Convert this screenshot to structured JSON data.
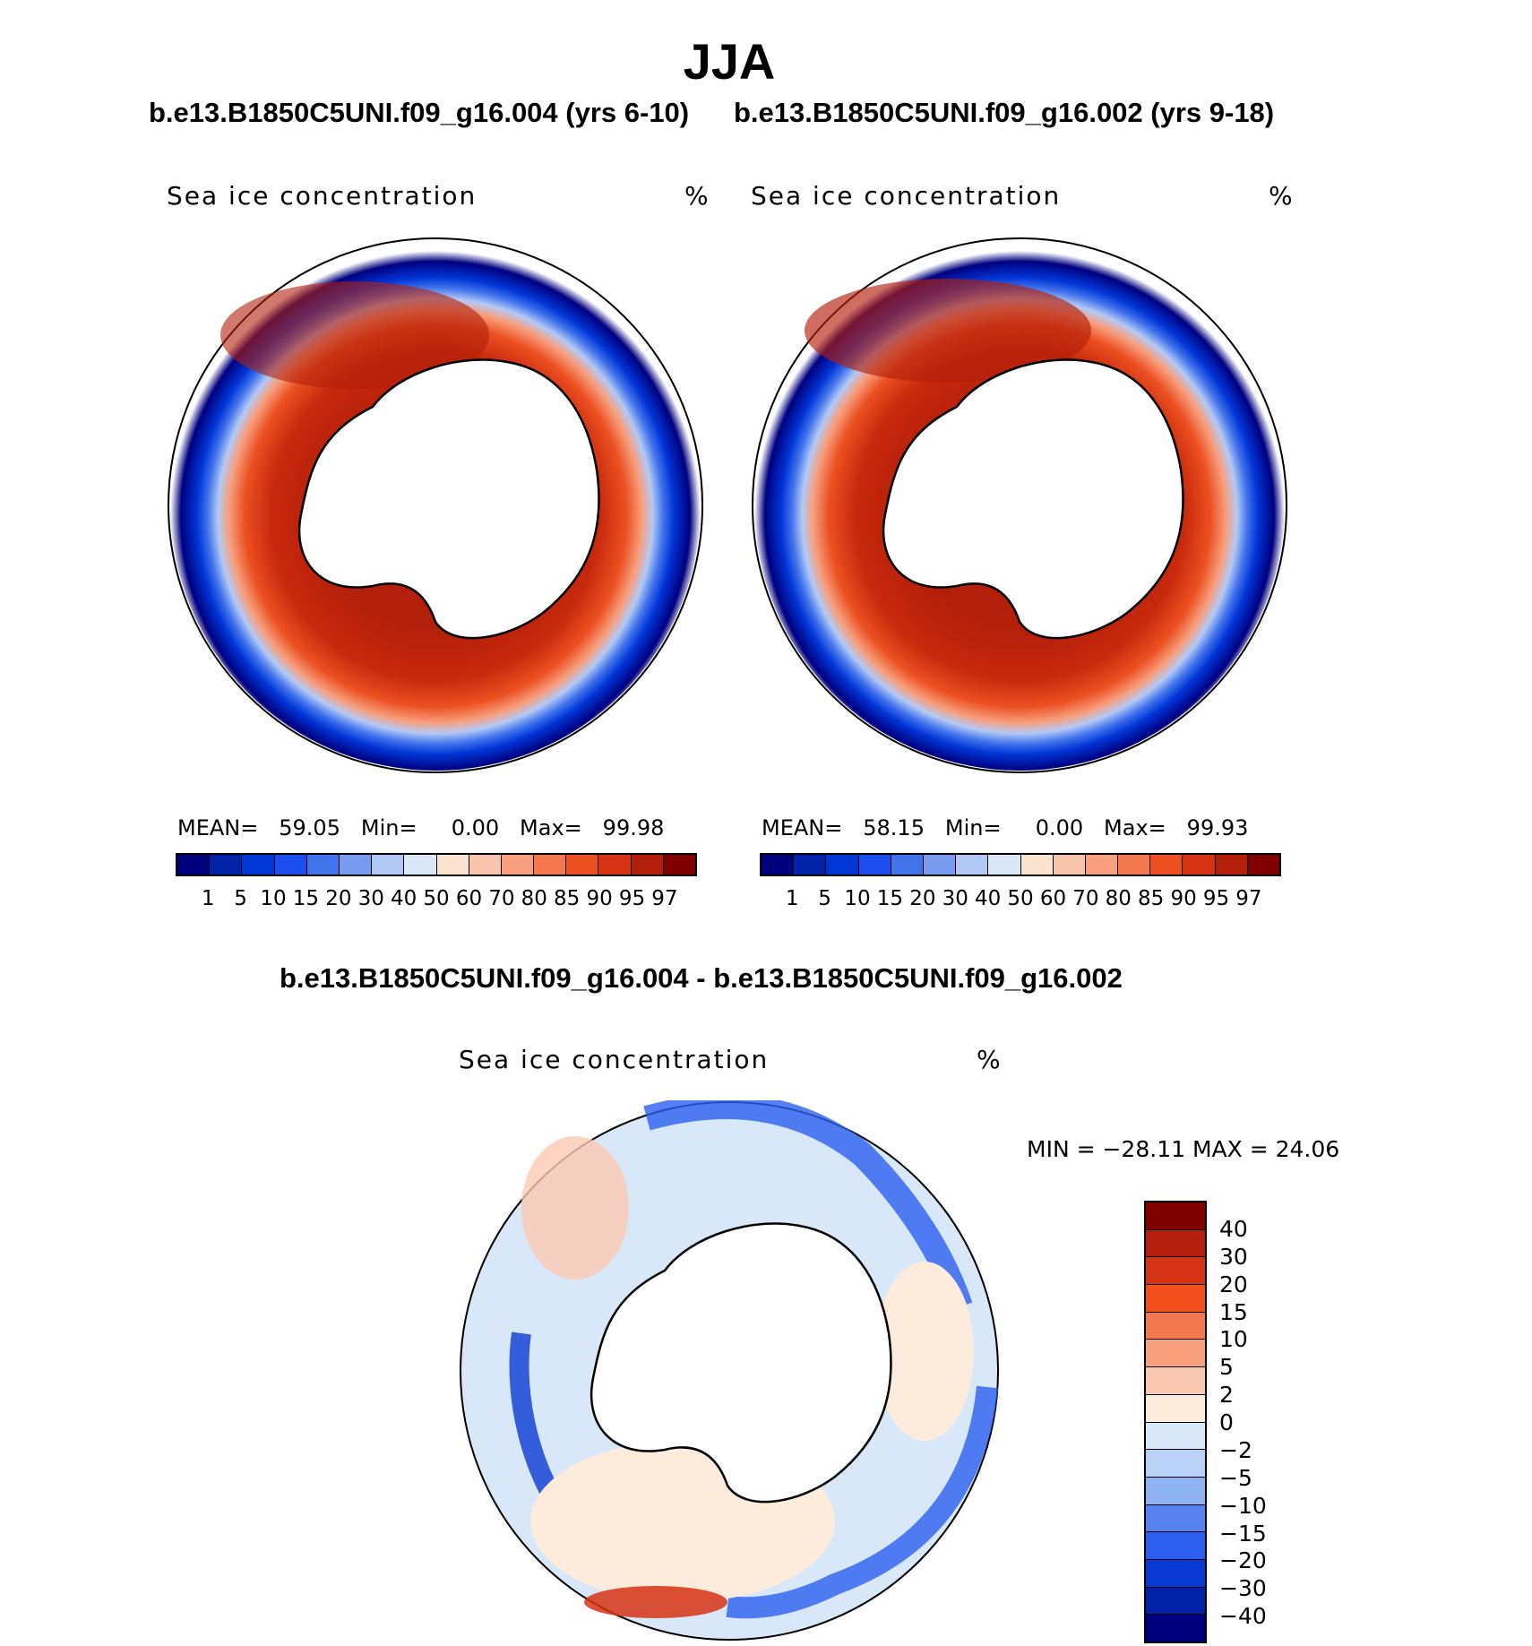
{
  "title": "JJA",
  "panels": [
    {
      "header": "b.e13.B1850C5UNI.f09_g16.004 (yrs 6-10)",
      "variable": "Sea ice concentration",
      "units": "%",
      "mean_label": "MEAN=",
      "mean": "59.05",
      "min_label": "Min=",
      "min": "0.00",
      "max_label": "Max=",
      "max": "99.98"
    },
    {
      "header": "b.e13.B1850C5UNI.f09_g16.002 (yrs 9-18)",
      "variable": "Sea ice concentration",
      "units": "%",
      "mean_label": "MEAN=",
      "mean": "58.15",
      "min_label": "Min=",
      "min": "0.00",
      "max_label": "Max=",
      "max": "99.93"
    }
  ],
  "diff_panel": {
    "header": "b.e13.B1850C5UNI.f09_g16.004 - b.e13.B1850C5UNI.f09_g16.002",
    "variable": "Sea ice concentration",
    "units": "%",
    "minmax_text": "MIN = −28.11 MAX =   24.06"
  },
  "colorbar_levels": [
    "1",
    "5",
    "10",
    "15",
    "20",
    "30",
    "40",
    "50",
    "60",
    "70",
    "80",
    "85",
    "90",
    "95",
    "97"
  ],
  "colorbar_colors": [
    "#00007f",
    "#0022a8",
    "#0035d6",
    "#1d4ff0",
    "#4173ec",
    "#7a9cf0",
    "#b3c9f5",
    "#dbe8f7",
    "#fbe3cf",
    "#f9c4ac",
    "#f79f7e",
    "#f3784d",
    "#ec5021",
    "#d63314",
    "#b31f0a",
    "#800000"
  ],
  "diff_levels": [
    "40",
    "30",
    "20",
    "15",
    "10",
    "5",
    "2",
    "0",
    "−2",
    "−5",
    "−10",
    "−15",
    "−20",
    "−30",
    "−40"
  ],
  "diff_colors": [
    "#800000",
    "#b31f0a",
    "#d63314",
    "#f3501e",
    "#f3784d",
    "#f9a07c",
    "#fbc9b1",
    "#fdebdc",
    "#d9e8f8",
    "#b9d1f7",
    "#8fb2f4",
    "#5683ef",
    "#2c5ff0",
    "#0a3ad5",
    "#0022a8",
    "#00007f"
  ]
}
